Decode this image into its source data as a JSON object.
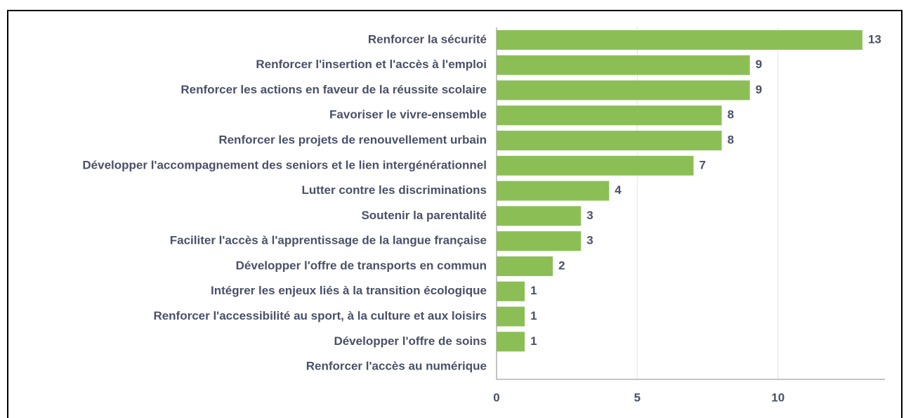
{
  "chart_data": {
    "type": "bar",
    "orientation": "horizontal",
    "categories": [
      "Renforcer la sécurité",
      "Renforcer l'insertion et l'accès à l'emploi",
      "Renforcer les actions en faveur de la réussite scolaire",
      "Favoriser le vivre-ensemble",
      "Renforcer les projets de renouvellement urbain",
      "Développer l'accompagnement des seniors et le lien intergénérationnel",
      "Lutter contre les discriminations",
      "Soutenir la parentalité",
      "Faciliter l'accès à l'apprentissage de la langue française",
      "Développer l'offre de transports en commun",
      "Intégrer les enjeux liés à la transition écologique",
      "Renforcer l'accessibilité au sport, à la culture et aux loisirs",
      "Développer l'offre de soins",
      "Renforcer l'accès au numérique"
    ],
    "values": [
      13,
      9,
      9,
      8,
      8,
      7,
      4,
      3,
      3,
      2,
      1,
      1,
      1,
      0
    ],
    "color": "#8bbf56",
    "xlim": [
      0,
      13.8
    ],
    "xticks": [
      0,
      5,
      10
    ],
    "grid": true
  }
}
